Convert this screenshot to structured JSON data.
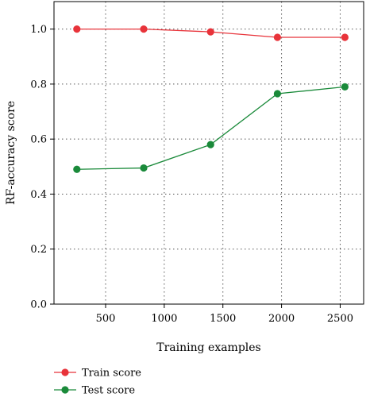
{
  "chart_data": {
    "type": "line",
    "title": "",
    "xlabel": "Training examples",
    "ylabel": "RF-accuracy score",
    "xlim": [
      60,
      2700
    ],
    "ylim": [
      0,
      1.1
    ],
    "xticks": [
      500,
      1000,
      1500,
      2000,
      2500
    ],
    "xtick_labels": [
      "500",
      "1000",
      "1500",
      "2000",
      "2500"
    ],
    "yticks": [
      0.0,
      0.2,
      0.4,
      0.6,
      0.8,
      1.0
    ],
    "ytick_labels": [
      "0.0",
      "0.2",
      "0.4",
      "0.6",
      "0.8",
      "1.0"
    ],
    "grid": true,
    "legend_position": "bottom-left",
    "x": [
      255,
      825,
      1395,
      1965,
      2540
    ],
    "series": [
      {
        "name": "Train score",
        "color": "#e8333a",
        "values": [
          1.0,
          1.0,
          0.99,
          0.97,
          0.97
        ]
      },
      {
        "name": "Test score",
        "color": "#1a8a3a",
        "values": [
          0.49,
          0.495,
          0.58,
          0.765,
          0.79
        ]
      }
    ]
  }
}
